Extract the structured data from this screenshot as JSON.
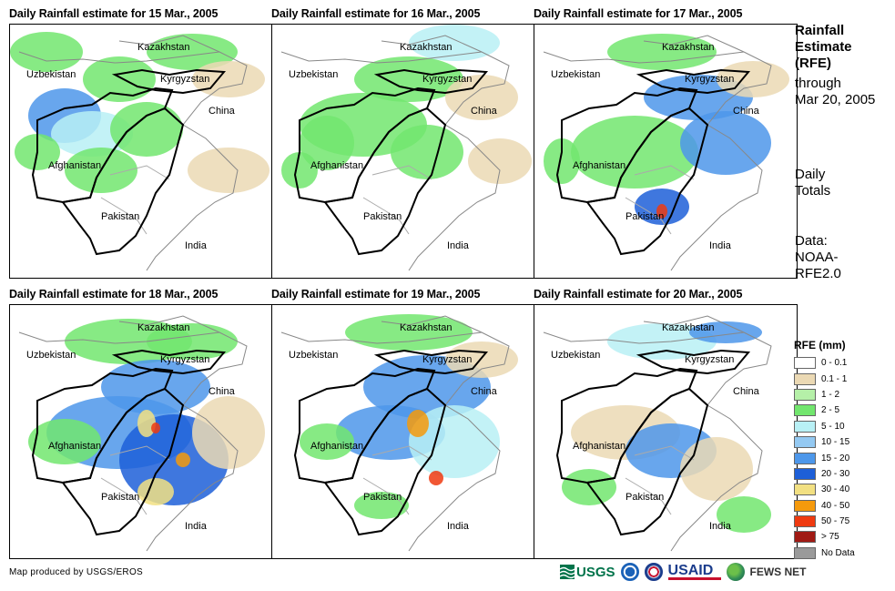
{
  "panels": [
    {
      "title": "Daily Rainfall estimate for 15 Mar., 2005"
    },
    {
      "title": "Daily Rainfall estimate for 16 Mar., 2005"
    },
    {
      "title": "Daily Rainfall estimate for 17 Mar., 2005"
    },
    {
      "title": "Daily Rainfall estimate for 18 Mar., 2005"
    },
    {
      "title": "Daily Rainfall estimate for 19 Mar., 2005"
    },
    {
      "title": "Daily Rainfall estimate for 20 Mar., 2005"
    }
  ],
  "map_labels": {
    "kazakhstan": "Kazakhstan",
    "uzbekistan": "Uzbekistan",
    "kyrgyzstan": "Kyrgyzstan",
    "china": "China",
    "afghanistan": "Afghanistan",
    "pakistan": "Pakistan",
    "india": "India"
  },
  "sidebar": {
    "title_line1": "Rainfall",
    "title_line2": "Estimate",
    "title_line3": "(RFE)",
    "through": "through",
    "date": "Mar 20, 2005",
    "daily1": "Daily",
    "daily2": "Totals",
    "data1": "Data:",
    "data2": "NOAA-",
    "data3": "RFE2.0"
  },
  "legend": {
    "title": "RFE (mm)",
    "items": [
      {
        "label": "0 - 0.1",
        "color": "#ffffff"
      },
      {
        "label": "0.1 - 1",
        "color": "#ebd9b4"
      },
      {
        "label": "1 - 2",
        "color": "#b5f0a8"
      },
      {
        "label": "2 - 5",
        "color": "#72e66e"
      },
      {
        "label": "5 - 10",
        "color": "#b8f0f5"
      },
      {
        "label": "10 - 15",
        "color": "#94c9f2"
      },
      {
        "label": "15 - 20",
        "color": "#4d97ea"
      },
      {
        "label": "20 - 30",
        "color": "#1d5fd8"
      },
      {
        "label": "30 - 40",
        "color": "#f2e082"
      },
      {
        "label": "40 - 50",
        "color": "#f59a0c"
      },
      {
        "label": "50 - 75",
        "color": "#ef3a10"
      },
      {
        "label": "> 75",
        "color": "#a01a14"
      },
      {
        "label": "No Data",
        "color": "#9a9a9a"
      }
    ]
  },
  "credit": "Map produced by USGS/EROS",
  "logos": {
    "usgs": "USGS",
    "usaid": "USAID",
    "fewsnet": "FEWS NET"
  }
}
